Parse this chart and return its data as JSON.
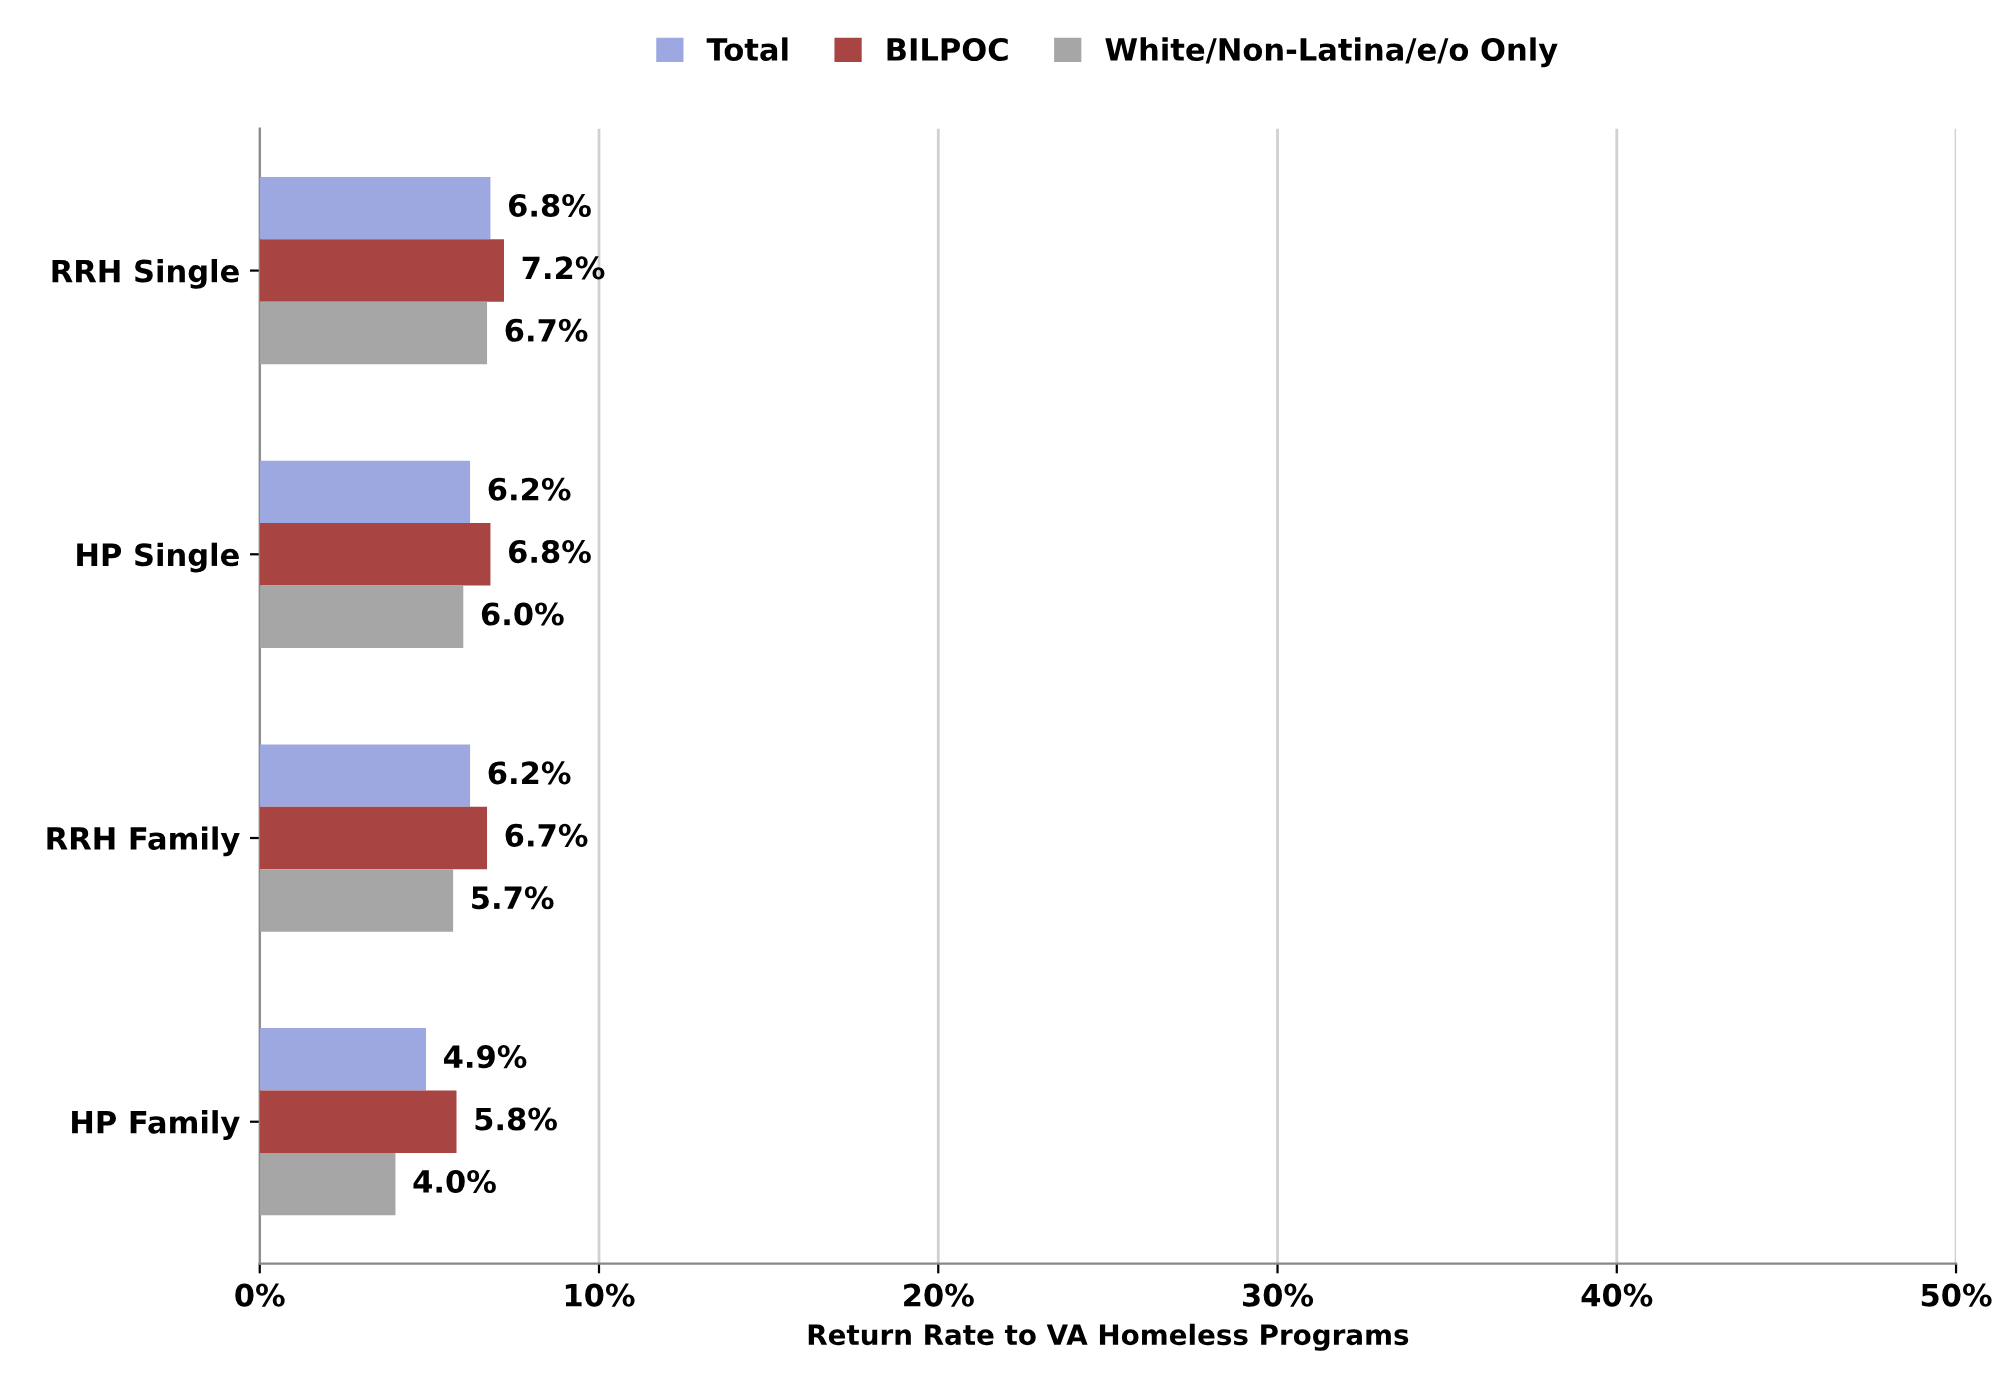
{
  "chart_data": {
    "type": "bar",
    "orientation": "horizontal",
    "categories": [
      "RRH Single",
      "HP Single",
      "RRH Family",
      "HP Family"
    ],
    "series": [
      {
        "name": "Total",
        "color": "#9da8e0",
        "values": [
          6.8,
          6.2,
          6.2,
          4.9
        ],
        "value_labels": [
          "6.8%",
          "6.2%",
          "6.2%",
          "4.9%"
        ]
      },
      {
        "name": "BILPOC",
        "color": "#a84442",
        "values": [
          7.2,
          6.8,
          6.7,
          5.8
        ],
        "value_labels": [
          "7.2%",
          "6.8%",
          "6.7%",
          "5.8%"
        ]
      },
      {
        "name": "White/Non-Latina/e/o Only",
        "color": "#a6a6a6",
        "values": [
          6.7,
          6.0,
          5.7,
          4.0
        ],
        "value_labels": [
          "6.7%",
          "6.0%",
          "5.7%",
          "4.0%"
        ]
      }
    ],
    "xlabel": "Return Rate to VA Homeless Programs",
    "xlim": [
      0,
      50
    ],
    "xticks": [
      {
        "value": 0,
        "label": "0%"
      },
      {
        "value": 10,
        "label": "10%"
      },
      {
        "value": 20,
        "label": "20%"
      },
      {
        "value": 30,
        "label": "30%"
      },
      {
        "value": 40,
        "label": "40%"
      },
      {
        "value": 50,
        "label": "50%"
      }
    ],
    "grid": "x",
    "legend": "top"
  }
}
